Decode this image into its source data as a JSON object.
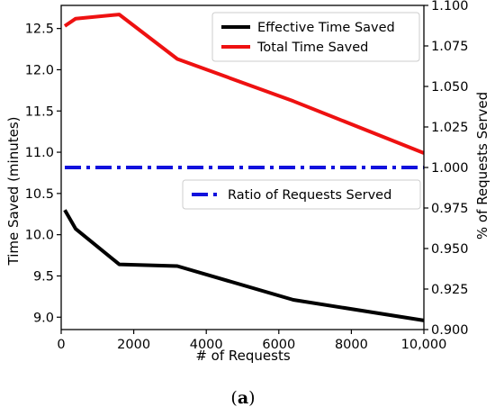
{
  "chart_data": {
    "type": "line",
    "xlabel": "# of Requests",
    "ylabel_left": "Time Saved (minutes)",
    "ylabel_right": "% of Requests Served",
    "xlim": [
      0,
      10000
    ],
    "ylim_left": [
      8.85,
      12.78
    ],
    "ylim_right": [
      0.9,
      1.1
    ],
    "x_ticks": [
      0,
      2000,
      4000,
      6000,
      8000,
      10000
    ],
    "x_tick_labels": [
      "0",
      "2000",
      "4000",
      "6000",
      "8000",
      "10,000"
    ],
    "y_left_ticks": [
      9.0,
      9.5,
      10.0,
      10.5,
      11.0,
      11.5,
      12.0,
      12.5
    ],
    "y_left_tick_labels": [
      "9.0",
      "9.5",
      "10.0",
      "10.5",
      "11.0",
      "11.5",
      "12.0",
      "12.5"
    ],
    "y_right_ticks": [
      0.9,
      0.925,
      0.95,
      0.975,
      1.0,
      1.025,
      1.05,
      1.075,
      1.1
    ],
    "y_right_tick_labels": [
      "0.900",
      "0.925",
      "0.950",
      "0.975",
      "1.000",
      "1.025",
      "1.050",
      "1.075",
      "1.100"
    ],
    "grid": false,
    "series": [
      {
        "name": "Effective Time Saved",
        "axis": "left",
        "color": "#000000",
        "style": "solid",
        "x": [
          100,
          400,
          1600,
          3200,
          6400,
          10000
        ],
        "values": [
          10.3,
          10.07,
          9.64,
          9.62,
          9.21,
          8.96
        ]
      },
      {
        "name": "Total Time Saved",
        "axis": "left",
        "color": "#ee1111",
        "style": "solid",
        "x": [
          100,
          400,
          1600,
          3200,
          6400,
          10000
        ],
        "values": [
          12.53,
          12.62,
          12.67,
          12.13,
          11.62,
          10.99
        ]
      },
      {
        "name": "Ratio of Requests Served",
        "axis": "right",
        "color": "#1111dd",
        "style": "dashdot",
        "x": [
          100,
          400,
          1600,
          3200,
          6400,
          10000
        ],
        "values": [
          1.0,
          1.0,
          1.0,
          1.0,
          1.0,
          1.0
        ]
      }
    ],
    "legend_upper": [
      "Effective Time Saved",
      "Total Time Saved"
    ],
    "legend_lower": [
      "Ratio of Requests Served"
    ],
    "legend_upper_placement": "top-right",
    "legend_lower_placement": "center-right"
  },
  "caption": {
    "open": "(",
    "letter": "a",
    "close": ")"
  }
}
